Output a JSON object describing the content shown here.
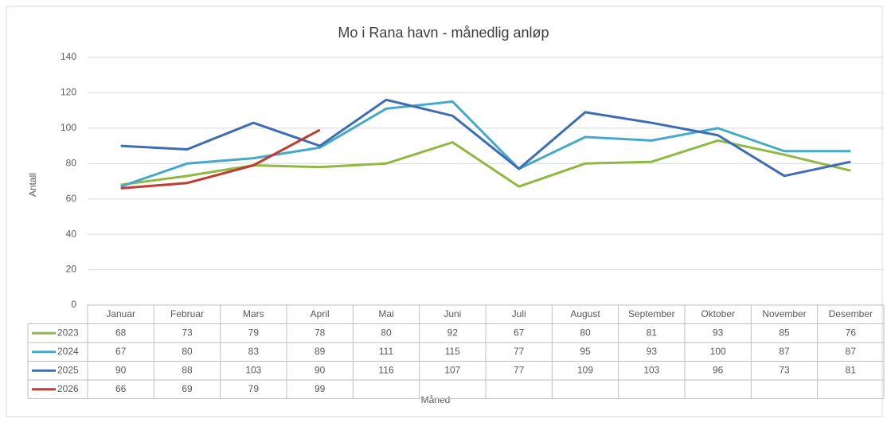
{
  "chart_data": {
    "type": "line",
    "title": "Mo i Rana havn - månedlig anløp",
    "xlabel": "Måned",
    "ylabel": "Antall",
    "categories": [
      "Januar",
      "Februar",
      "Mars",
      "April",
      "Mai",
      "Juni",
      "Juli",
      "August",
      "September",
      "Oktober",
      "November",
      "Desember"
    ],
    "series": [
      {
        "name": "2023",
        "color": "#8fb943",
        "values": [
          68,
          73,
          79,
          78,
          80,
          92,
          67,
          80,
          81,
          93,
          85,
          76
        ]
      },
      {
        "name": "2024",
        "color": "#47a9c9",
        "values": [
          67,
          80,
          83,
          89,
          111,
          115,
          77,
          95,
          93,
          100,
          87,
          87
        ]
      },
      {
        "name": "2025",
        "color": "#3e6db4",
        "values": [
          90,
          88,
          103,
          90,
          116,
          107,
          77,
          109,
          103,
          96,
          73,
          81
        ]
      },
      {
        "name": "2026",
        "color": "#c23b33",
        "values": [
          66,
          69,
          79,
          99,
          null,
          null,
          null,
          null,
          null,
          null,
          null,
          null
        ]
      }
    ],
    "ylim": [
      0,
      140
    ],
    "yticks": [
      0,
      20,
      40,
      60,
      80,
      100,
      120,
      140
    ],
    "grid": true,
    "data_table": true
  }
}
